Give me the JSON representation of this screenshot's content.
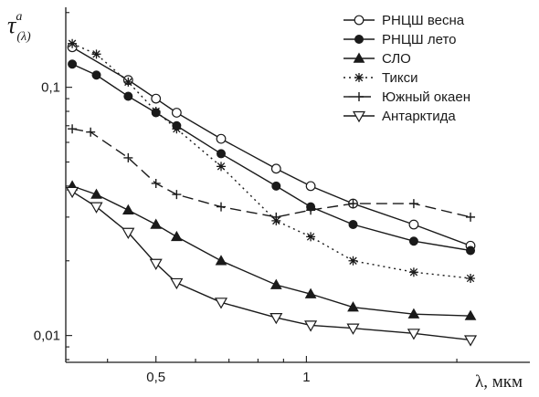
{
  "chart_data": {
    "type": "line",
    "x_scale": "log",
    "y_scale": "log",
    "xlim": [
      0.33,
      2.8
    ],
    "ylim": [
      0.0078,
      0.21
    ],
    "x_ticks": [
      {
        "value": 0.5,
        "label": "0,5"
      },
      {
        "value": 1,
        "label": "1"
      }
    ],
    "y_ticks": [
      {
        "value": 0.01,
        "label": "0,01"
      },
      {
        "value": 0.1,
        "label": "0,1"
      }
    ],
    "xlabel": "λ, мкм",
    "ylabel": {
      "main": "τ",
      "sup": "a",
      "sub": "(λ)"
    },
    "grid": false,
    "legend": "top-right",
    "series": [
      {
        "name": "РНЦШ весна",
        "color": "#1a1a1a",
        "line": "solid",
        "marker": "circle-open",
        "x": [
          0.34,
          0.44,
          0.5,
          0.55,
          0.675,
          0.87,
          1.02,
          1.24,
          1.64,
          2.13
        ],
        "y": [
          0.145,
          0.107,
          0.09,
          0.079,
          0.062,
          0.047,
          0.04,
          0.034,
          0.028,
          0.023
        ]
      },
      {
        "name": "РНЦШ лето",
        "color": "#1a1a1a",
        "line": "solid",
        "marker": "circle-filled",
        "x": [
          0.34,
          0.38,
          0.44,
          0.5,
          0.55,
          0.675,
          0.87,
          1.02,
          1.24,
          1.64,
          2.13
        ],
        "y": [
          0.124,
          0.112,
          0.092,
          0.079,
          0.07,
          0.054,
          0.04,
          0.033,
          0.028,
          0.024,
          0.022
        ]
      },
      {
        "name": "СЛО",
        "color": "#1a1a1a",
        "line": "solid",
        "marker": "triangle-filled",
        "x": [
          0.34,
          0.38,
          0.44,
          0.5,
          0.55,
          0.675,
          0.87,
          1.02,
          1.24,
          1.64,
          2.13
        ],
        "y": [
          0.04,
          0.037,
          0.032,
          0.028,
          0.025,
          0.02,
          0.016,
          0.0147,
          0.013,
          0.0122,
          0.012
        ]
      },
      {
        "name": "Тикси",
        "color": "#1a1a1a",
        "line": "dotted",
        "marker": "asterisk",
        "x": [
          0.34,
          0.38,
          0.44,
          0.5,
          0.55,
          0.675,
          0.87,
          1.02,
          1.24,
          1.64,
          2.13
        ],
        "y": [
          0.15,
          0.136,
          0.105,
          0.08,
          0.068,
          0.048,
          0.029,
          0.025,
          0.02,
          0.018,
          0.017
        ]
      },
      {
        "name": "Южный окаен",
        "color": "#1a1a1a",
        "line": "dashed",
        "marker": "plus",
        "x": [
          0.34,
          0.37,
          0.44,
          0.5,
          0.55,
          0.675,
          0.87,
          1.02,
          1.24,
          1.64,
          2.13
        ],
        "y": [
          0.068,
          0.066,
          0.052,
          0.041,
          0.037,
          0.033,
          0.03,
          0.032,
          0.034,
          0.034,
          0.03
        ]
      },
      {
        "name": "Антарктида",
        "color": "#1a1a1a",
        "line": "solid",
        "marker": "triangle-down-open",
        "x": [
          0.34,
          0.38,
          0.44,
          0.5,
          0.55,
          0.675,
          0.87,
          1.02,
          1.24,
          1.64,
          2.13
        ],
        "y": [
          0.038,
          0.033,
          0.026,
          0.0195,
          0.0163,
          0.0136,
          0.0118,
          0.011,
          0.0107,
          0.0102,
          0.0096
        ]
      }
    ]
  }
}
